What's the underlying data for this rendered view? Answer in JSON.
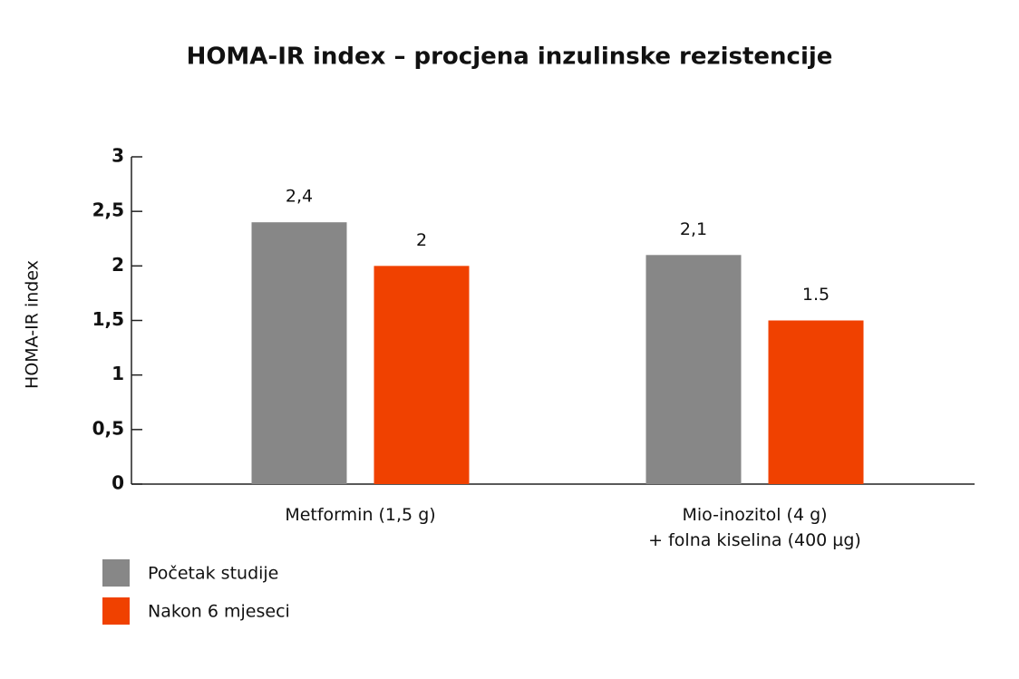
{
  "chart_data": {
    "type": "bar",
    "title": "HOMA-IR index – procjena inzulinske rezistencije",
    "y_label": "HOMA-IR index",
    "categories": [
      "Metformin (1,5 g)",
      "Mio-inozitol (4 g)\n+ folna kiselina (400 µg)"
    ],
    "series": [
      {
        "name": "Početak studije",
        "color": "#878787",
        "values": [
          2.4,
          2.1
        ],
        "value_labels": [
          "2,4",
          "2,1"
        ]
      },
      {
        "name": "Nakon 6 mjeseci",
        "color": "#f04100",
        "values": [
          2,
          1.5
        ]
      }
    ],
    "ylim": [
      0,
      3
    ],
    "yticks": [
      0,
      {
        "value": 0.5,
        "label": "0,5"
      },
      1,
      {
        "value": 1.5,
        "label": "1,5"
      },
      2,
      {
        "value": 2.5,
        "label": "2,5"
      },
      3
    ],
    "grid": false,
    "legend": "bottom-left"
  }
}
